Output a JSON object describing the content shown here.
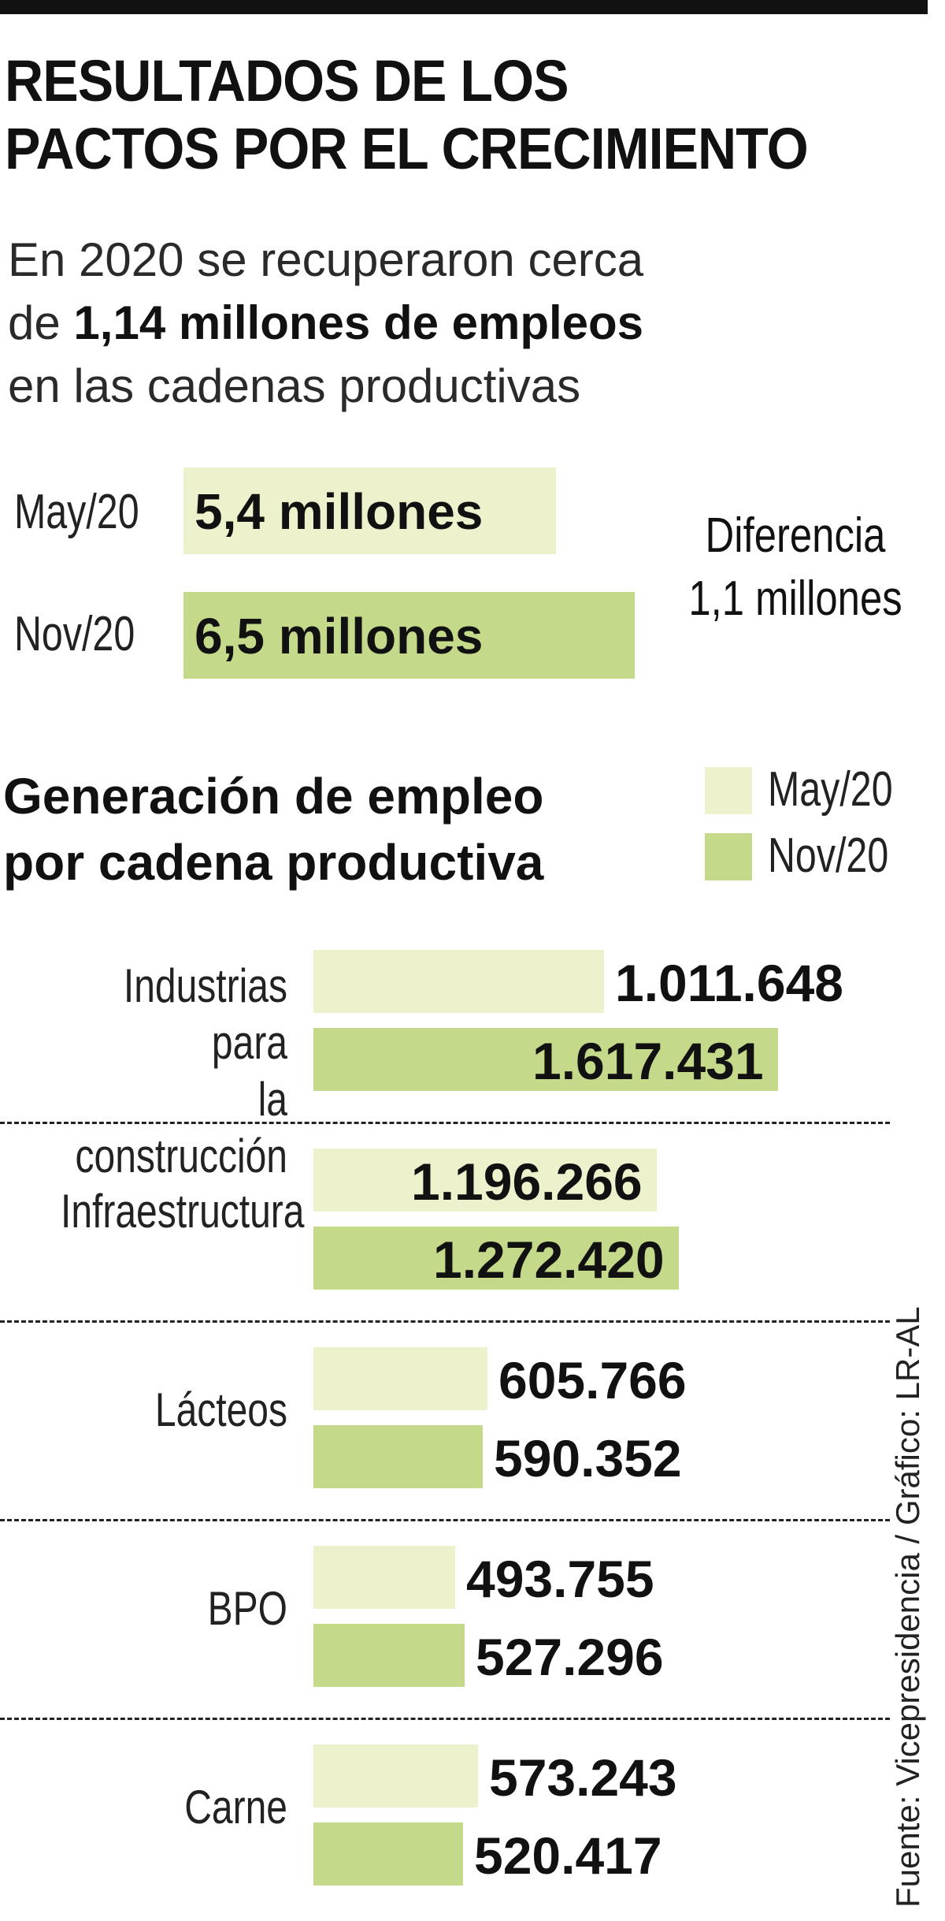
{
  "header": {
    "title_line1": "RESULTADOS DE LOS",
    "title_line2": "PACTOS POR EL CRECIMIENTO",
    "subtitle_line1": "En 2020 se recuperaron cerca",
    "subtitle_prefix": "de ",
    "subtitle_bold": "1,14 millones de empleos",
    "subtitle_line3": "en las cadenas productivas"
  },
  "totals": {
    "rows": [
      {
        "label": "May/20",
        "value_text": "5,4 millones",
        "value": 5.4
      },
      {
        "label": "Nov/20",
        "value_text": "6,5 millones",
        "value": 6.5
      }
    ],
    "diff_line1": "Diferencia",
    "diff_line2": "1,1 millones"
  },
  "section": {
    "title_line1": "Generación de empleo",
    "title_line2": "por cadena productiva"
  },
  "colors": {
    "may": "#eef2cc",
    "nov": "#c5d98b"
  },
  "chart_data": {
    "type": "bar",
    "orientation": "horizontal",
    "title": "Generación de empleo por cadena productiva",
    "legend_position": "top-right",
    "categories": [
      {
        "label_line1": "Industrias para",
        "label_line2": "la construcción"
      },
      {
        "label_line1": "Infraestructura",
        "label_line2": ""
      },
      {
        "label_line1": "Lácteos",
        "label_line2": ""
      },
      {
        "label_line1": "BPO",
        "label_line2": ""
      },
      {
        "label_line1": "Carne",
        "label_line2": ""
      }
    ],
    "series": [
      {
        "name": "May/20",
        "color": "#eef2cc",
        "values": [
          1011648,
          1196266,
          605766,
          493755,
          573243
        ],
        "labels": [
          "1.011.648",
          "1.196.266",
          "605.766",
          "493.755",
          "573.243"
        ]
      },
      {
        "name": "Nov/20",
        "color": "#c5d98b",
        "values": [
          1617431,
          1272420,
          590352,
          527296,
          520417
        ],
        "labels": [
          "1.617.431",
          "1.272.420",
          "590.352",
          "527.296",
          "520.417"
        ]
      }
    ]
  },
  "source": "Fuente: Vicepresidencia / Gráfico: LR-AL"
}
